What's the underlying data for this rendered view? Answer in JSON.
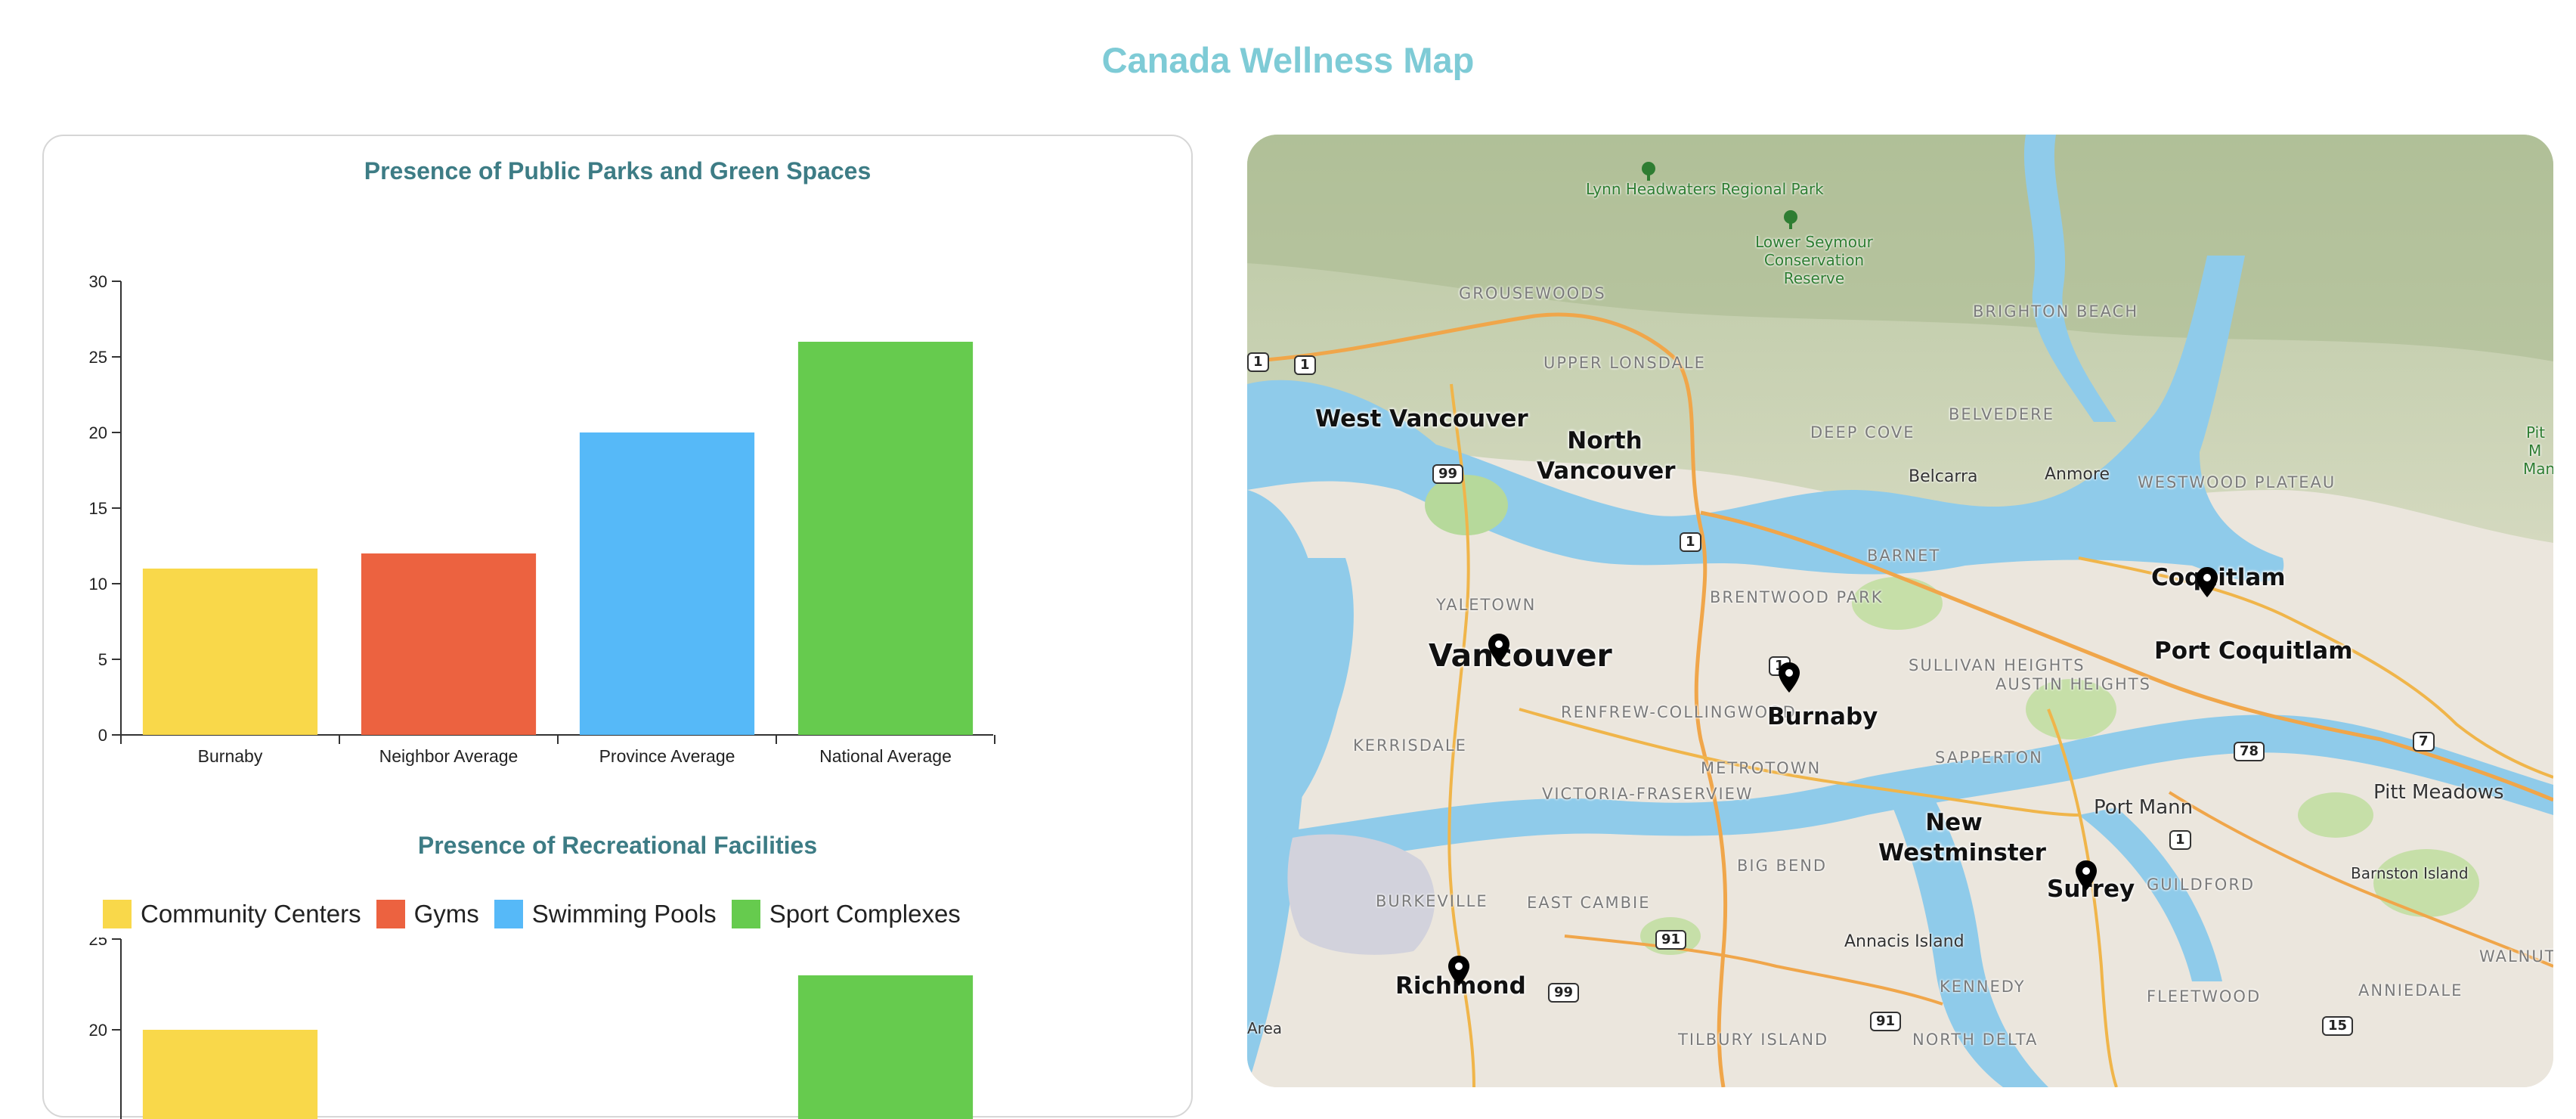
{
  "page": {
    "title": "Canada Wellness Map"
  },
  "charts": [
    {
      "title": "Presence of Public Parks and Green Spaces"
    },
    {
      "title": "Presence of Recreational Facilities"
    }
  ],
  "chart_data": [
    {
      "type": "bar",
      "title": "Presence of Public Parks and Green Spaces",
      "categories": [
        "Burnaby",
        "Neighbor Average",
        "Province Average",
        "National Average"
      ],
      "values": [
        11,
        12,
        20,
        26
      ],
      "colors": [
        "#f9d84a",
        "#ec6240",
        "#56b9f8",
        "#66cb4e"
      ],
      "ylim": [
        0,
        30
      ],
      "yticks": [
        "0",
        "5",
        "10",
        "15",
        "20",
        "25",
        "30"
      ],
      "xlabel": "",
      "ylabel": "",
      "grid": false
    },
    {
      "type": "bar",
      "title": "Presence of Recreational Facilities",
      "legend": {
        "position": "top",
        "items": [
          {
            "label": "Community Centers",
            "color": "#f9d84a"
          },
          {
            "label": "Gyms",
            "color": "#ec6240"
          },
          {
            "label": "Swimming Pools",
            "color": "#56b9f8"
          },
          {
            "label": "Sport Complexes",
            "color": "#66cb4e"
          }
        ]
      },
      "yticks": [
        "20",
        "25"
      ],
      "ylim": [
        0,
        25
      ],
      "visible_values": [
        {
          "series": "Community Centers",
          "value": 20
        },
        {
          "series": "Sport Complexes",
          "value": 23
        }
      ]
    }
  ],
  "map": {
    "cities": [
      "West Vancouver",
      "North Vancouver",
      "Vancouver",
      "Burnaby",
      "Coquitlam",
      "Port Coquitlam",
      "New Westminster",
      "Surrey",
      "Richmond",
      "Port Mann",
      "Pitt Meadows"
    ],
    "neighborhoods": [
      "GROUSEWOODS",
      "UPPER LONSDALE",
      "BRIGHTON BEACH",
      "DEEP COVE",
      "BELVEDERE",
      "WESTWOOD PLATEAU",
      "BARNET",
      "BRENTWOOD PARK",
      "YALETOWN",
      "SULLIVAN HEIGHTS",
      "AUSTIN HEIGHTS",
      "RENFREW-COLLINGWOOD",
      "KERRISDALE",
      "METROTOWN",
      "SAPPERTON",
      "VICTORIA-FRASERVIEW",
      "BIG BEND",
      "BURKEVILLE",
      "EAST CAMBIE",
      "GUILDFORD",
      "ANNIEDALE",
      "KENNEDY",
      "FLEETWOOD",
      "NORTH DELTA",
      "TILBURY ISLAND",
      "WALNUT GROVE"
    ],
    "parks": [
      "Lynn Headwaters Regional Park",
      "Lower Seymour Conservation Reserve"
    ],
    "places": [
      "Belcarra",
      "Anmore",
      "Annacis Island",
      "Barnston Island"
    ],
    "routes": [
      "1",
      "99",
      "7",
      "78",
      "91",
      "15"
    ],
    "edge_labels": {
      "area": "Area",
      "pitt": "Pit",
      "ma": "M",
      "man": "Man"
    },
    "markers": [
      "vancouver-marker",
      "burnaby-marker",
      "coquitlam-marker",
      "surrey-marker",
      "richmond-marker"
    ]
  }
}
